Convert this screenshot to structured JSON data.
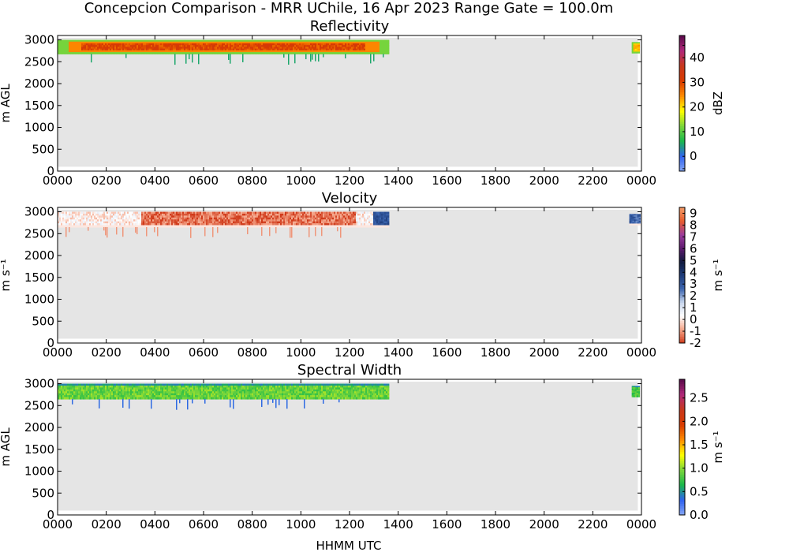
{
  "figure": {
    "suptitle": "Concepcion Comparison - MRR UChile, 16 Apr 2023 Range Gate = 100.0m",
    "xlabel": "HHMM UTC"
  },
  "chart_data": [
    {
      "type": "heatmap",
      "title": "Reflectivity",
      "ylabel": "m AGL",
      "colorbar_label": "dBZ",
      "x_ticks": [
        "0000",
        "0200",
        "0400",
        "0600",
        "0800",
        "1000",
        "1200",
        "1400",
        "1600",
        "1800",
        "2000",
        "2200",
        "0000"
      ],
      "y_ticks": [
        "0",
        "500",
        "1000",
        "1500",
        "2000",
        "2500",
        "3000"
      ],
      "xlim_hours": [
        0,
        24
      ],
      "ylim": [
        0,
        3100
      ],
      "colorbar_range": [
        -6,
        49
      ],
      "colorbar_ticks": [
        "0",
        "10",
        "20",
        "30",
        "40"
      ],
      "colorbar_tick_values": [
        0,
        10,
        20,
        30,
        40
      ],
      "colorbar_extra_ticks": [
        "-5",
        "45"
      ],
      "colorbar_extra_tick_values": [
        -5,
        45
      ],
      "colorbar_colors": [
        "#87A8F5",
        "#2F62F0",
        "#19B84B",
        "#7BD63B",
        "#FFFF00",
        "#FF8C00",
        "#D83A00",
        "#C8381C",
        "#B0287A",
        "#5A0A4A"
      ],
      "data_extent": [
        {
          "start_hours": 0.0,
          "end_hours": 13.6,
          "bottom_m": 2680,
          "top_m": 3000,
          "core_dbz": 30,
          "edge_dbz": 12
        },
        {
          "start_hours": 23.6,
          "end_hours": 23.9,
          "bottom_m": 2700,
          "top_m": 2950,
          "core_dbz": 22,
          "edge_dbz": 12
        }
      ],
      "no_data_color": "#E5E5E5"
    },
    {
      "type": "heatmap",
      "title": "Velocity",
      "ylabel": "m s⁻¹",
      "colorbar_label": "m s⁻¹",
      "x_ticks": [
        "0000",
        "0200",
        "0400",
        "0600",
        "0800",
        "1000",
        "1200",
        "1400",
        "1600",
        "1800",
        "2000",
        "2200",
        "0000"
      ],
      "y_ticks": [
        "0",
        "500",
        "1000",
        "1500",
        "2000",
        "2500",
        "3000"
      ],
      "xlim_hours": [
        0,
        24
      ],
      "ylim": [
        0,
        3100
      ],
      "colorbar_range": [
        -2,
        9.5
      ],
      "colorbar_ticks": [
        "-2",
        "-1",
        "0",
        "1",
        "2",
        "3",
        "4",
        "5",
        "6",
        "7",
        "8",
        "9"
      ],
      "colorbar_tick_values": [
        -2,
        -1,
        0,
        1,
        2,
        3,
        4,
        5,
        6,
        7,
        8,
        9
      ],
      "colorbar_colors": [
        "#D03A1A",
        "#F4A488",
        "#FFFFFF",
        "#C9D7EE",
        "#3D66B0",
        "#1E3C7A",
        "#101A3E",
        "#5E1A6E",
        "#9B3C9E",
        "#E85C2C",
        "#F29A66"
      ],
      "data_extent": [
        {
          "start_hours": 0.0,
          "end_hours": 13.6,
          "bottom_m": 2650,
          "top_m": 3000,
          "mean_velocity": -0.8
        },
        {
          "start_hours": 23.5,
          "end_hours": 23.9,
          "bottom_m": 2700,
          "top_m": 2950,
          "mean_velocity": 2.5
        }
      ],
      "no_data_color": "#E5E5E5"
    },
    {
      "type": "heatmap",
      "title": "Spectral Width",
      "ylabel": "m AGL",
      "colorbar_label": "m s⁻¹",
      "x_ticks": [
        "0000",
        "0200",
        "0400",
        "0600",
        "0800",
        "1000",
        "1200",
        "1400",
        "1600",
        "1800",
        "2000",
        "2200",
        "0000"
      ],
      "y_ticks": [
        "0",
        "500",
        "1000",
        "1500",
        "2000",
        "2500",
        "3000"
      ],
      "xlim_hours": [
        0,
        24
      ],
      "ylim": [
        0,
        3100
      ],
      "colorbar_range": [
        0,
        2.9
      ],
      "colorbar_ticks": [
        "0.0",
        "0.5",
        "1.0",
        "1.5",
        "2.0",
        "2.5"
      ],
      "colorbar_tick_values": [
        0,
        0.5,
        1.0,
        1.5,
        2.0,
        2.5
      ],
      "colorbar_colors": [
        "#87A8F5",
        "#2F62F0",
        "#19B84B",
        "#7BD63B",
        "#FFFF00",
        "#FF8C00",
        "#D83A00",
        "#C8381C",
        "#B0287A",
        "#5A0A4A"
      ],
      "data_extent": [
        {
          "start_hours": 0.0,
          "end_hours": 13.6,
          "bottom_m": 2650,
          "top_m": 3000,
          "mean_width": 0.9
        },
        {
          "start_hours": 23.6,
          "end_hours": 23.9,
          "bottom_m": 2700,
          "top_m": 2950,
          "mean_width": 0.8
        }
      ],
      "no_data_color": "#E5E5E5"
    }
  ]
}
